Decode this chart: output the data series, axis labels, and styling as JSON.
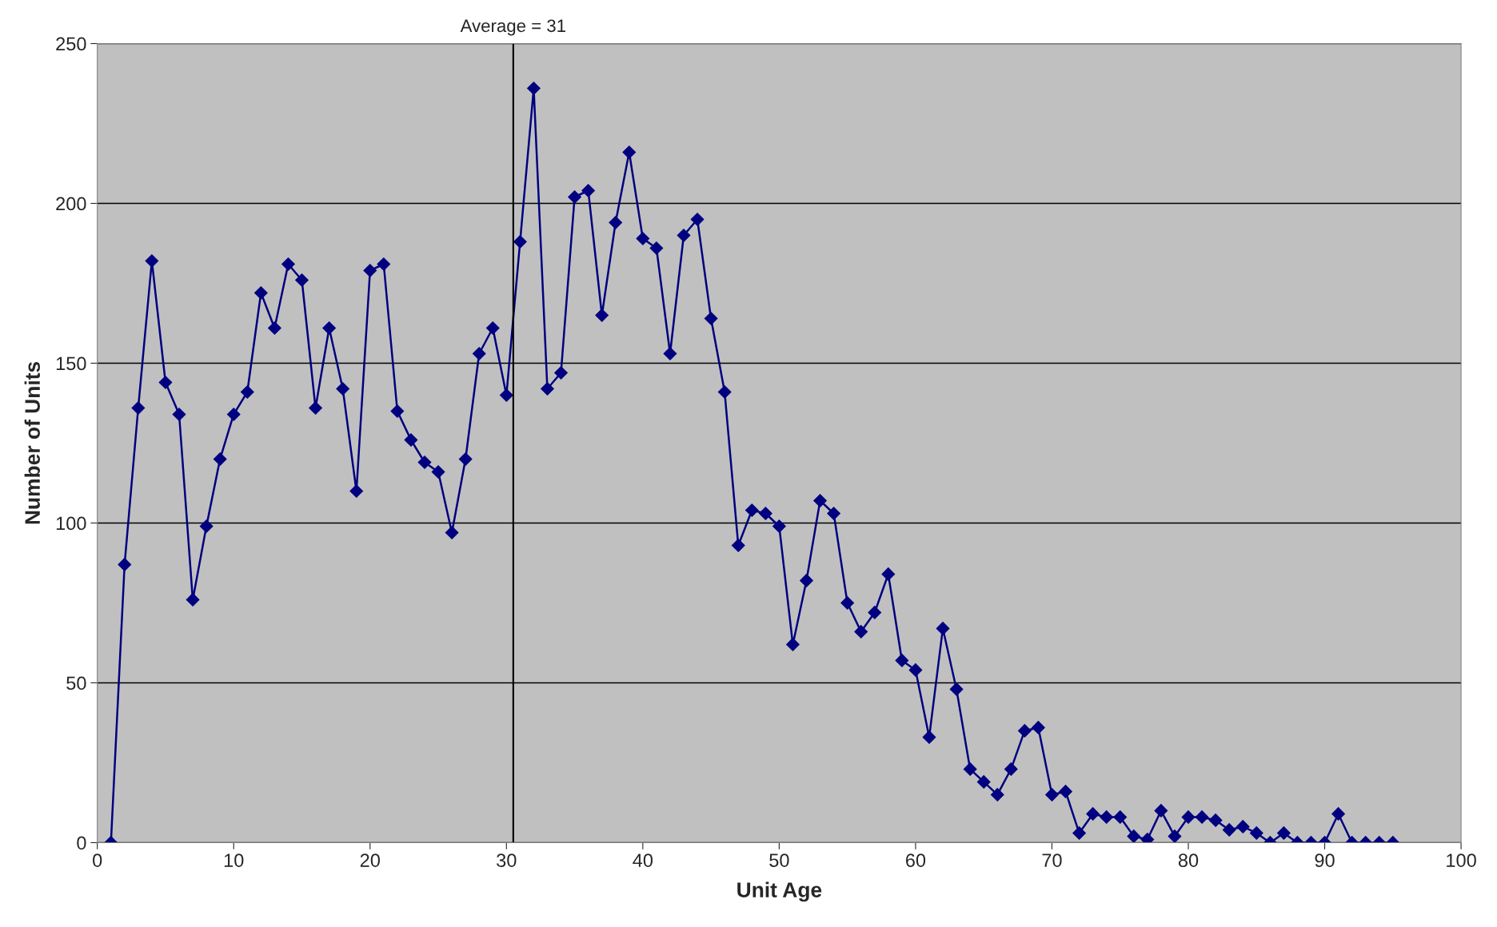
{
  "chart_data": {
    "type": "line",
    "xlabel": "Unit Age",
    "ylabel": "Number of Units",
    "x": [
      1,
      2,
      3,
      4,
      5,
      6,
      7,
      8,
      9,
      10,
      11,
      12,
      13,
      14,
      15,
      16,
      17,
      18,
      19,
      20,
      21,
      22,
      23,
      24,
      25,
      26,
      27,
      28,
      29,
      30,
      31,
      32,
      33,
      34,
      35,
      36,
      37,
      38,
      39,
      40,
      41,
      42,
      43,
      44,
      45,
      46,
      47,
      48,
      49,
      50,
      51,
      52,
      53,
      54,
      55,
      56,
      57,
      58,
      59,
      60,
      61,
      62,
      63,
      64,
      65,
      66,
      67,
      68,
      69,
      70,
      71,
      72,
      73,
      74,
      75,
      76,
      77,
      78,
      79,
      80,
      81,
      82,
      83,
      84,
      85,
      86,
      87,
      88,
      89,
      90,
      91,
      92,
      93,
      94,
      95
    ],
    "series": [
      {
        "color": "#000080",
        "values": [
          0,
          87,
          136,
          182,
          144,
          134,
          76,
          99,
          120,
          134,
          141,
          172,
          161,
          181,
          176,
          136,
          161,
          142,
          110,
          179,
          181,
          135,
          126,
          119,
          116,
          97,
          120,
          153,
          161,
          140,
          188,
          236,
          142,
          147,
          202,
          204,
          165,
          194,
          216,
          189,
          186,
          153,
          190,
          195,
          164,
          141,
          93,
          104,
          103,
          99,
          62,
          82,
          107,
          103,
          75,
          66,
          72,
          84,
          57,
          54,
          33,
          67,
          48,
          23,
          19,
          15,
          23,
          35,
          36,
          15,
          16,
          3,
          9,
          8,
          8,
          2,
          1,
          10,
          2,
          8,
          8,
          7,
          4,
          5,
          3,
          0,
          3,
          0,
          0,
          0,
          9,
          0,
          0,
          0,
          0
        ]
      }
    ],
    "xlim": [
      0,
      100
    ],
    "xticks": [
      0,
      10,
      20,
      30,
      40,
      50,
      60,
      70,
      80,
      90,
      100
    ],
    "ylim": [
      0,
      250
    ],
    "yticks": [
      0,
      50,
      100,
      150,
      200,
      250
    ],
    "ref_lines": [
      {
        "axis": "x",
        "value": 30.5,
        "label": "Average = 31",
        "color": "#000000"
      }
    ],
    "grid": "y",
    "marker": "diamond",
    "line_style": "solid",
    "legend": false
  }
}
